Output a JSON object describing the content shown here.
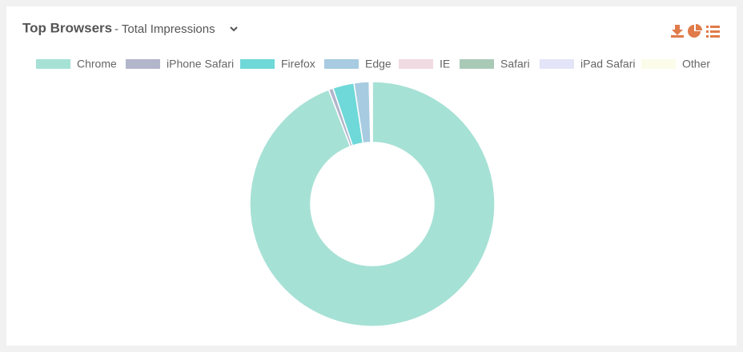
{
  "header": {
    "title": "Top Browsers",
    "subtitle": "- Total Impressions"
  },
  "chart_data": {
    "type": "donut",
    "categories": [
      "Chrome",
      "iPhone Safari",
      "Firefox",
      "Edge",
      "IE",
      "Safari",
      "iPad Safari",
      "Other"
    ],
    "values": [
      94.2,
      0.6,
      2.8,
      2.0,
      0.1,
      0.1,
      0.1,
      0.1
    ],
    "colors": [
      "#a6e1d5",
      "#b3b6cb",
      "#6fd8d8",
      "#a7cbe0",
      "#f1dbe2",
      "#a9c9b7",
      "#e3e4f8",
      "#fbfdea"
    ]
  }
}
